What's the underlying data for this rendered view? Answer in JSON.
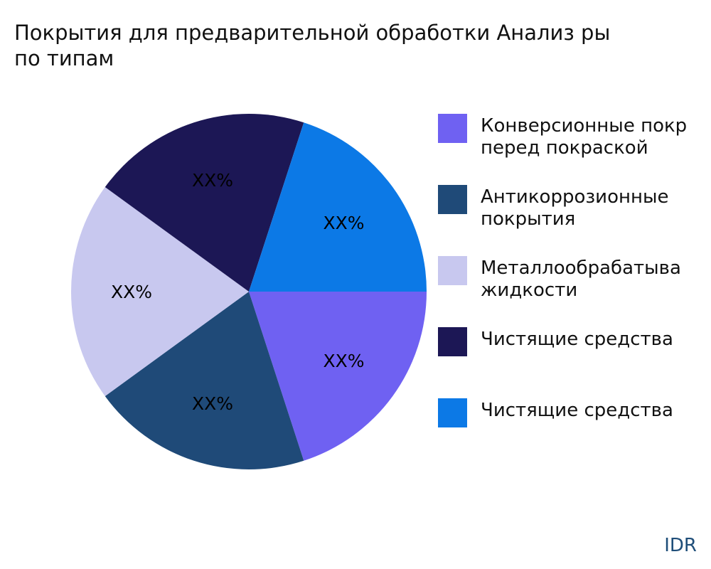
{
  "chart_data": {
    "type": "pie",
    "title": "Покрытия для предварительной обработки Анализ ры\nпо типам",
    "categories": [
      "Конверсионные покр\nперед покраской",
      "Антикоррозионные\nпокрытия",
      "Металлообрабатыва\nжидкости",
      "Чистящие средства",
      "Чистящие средства"
    ],
    "values": [
      20,
      20,
      20,
      20,
      20
    ],
    "data_labels": [
      "XX%",
      "XX%",
      "XX%",
      "XX%",
      "XX%"
    ],
    "colors": [
      "#6f61f2",
      "#1f4a78",
      "#c8c8ef",
      "#1c1755",
      "#0c79e6"
    ],
    "legend_position": "right"
  },
  "credit": "IDR"
}
